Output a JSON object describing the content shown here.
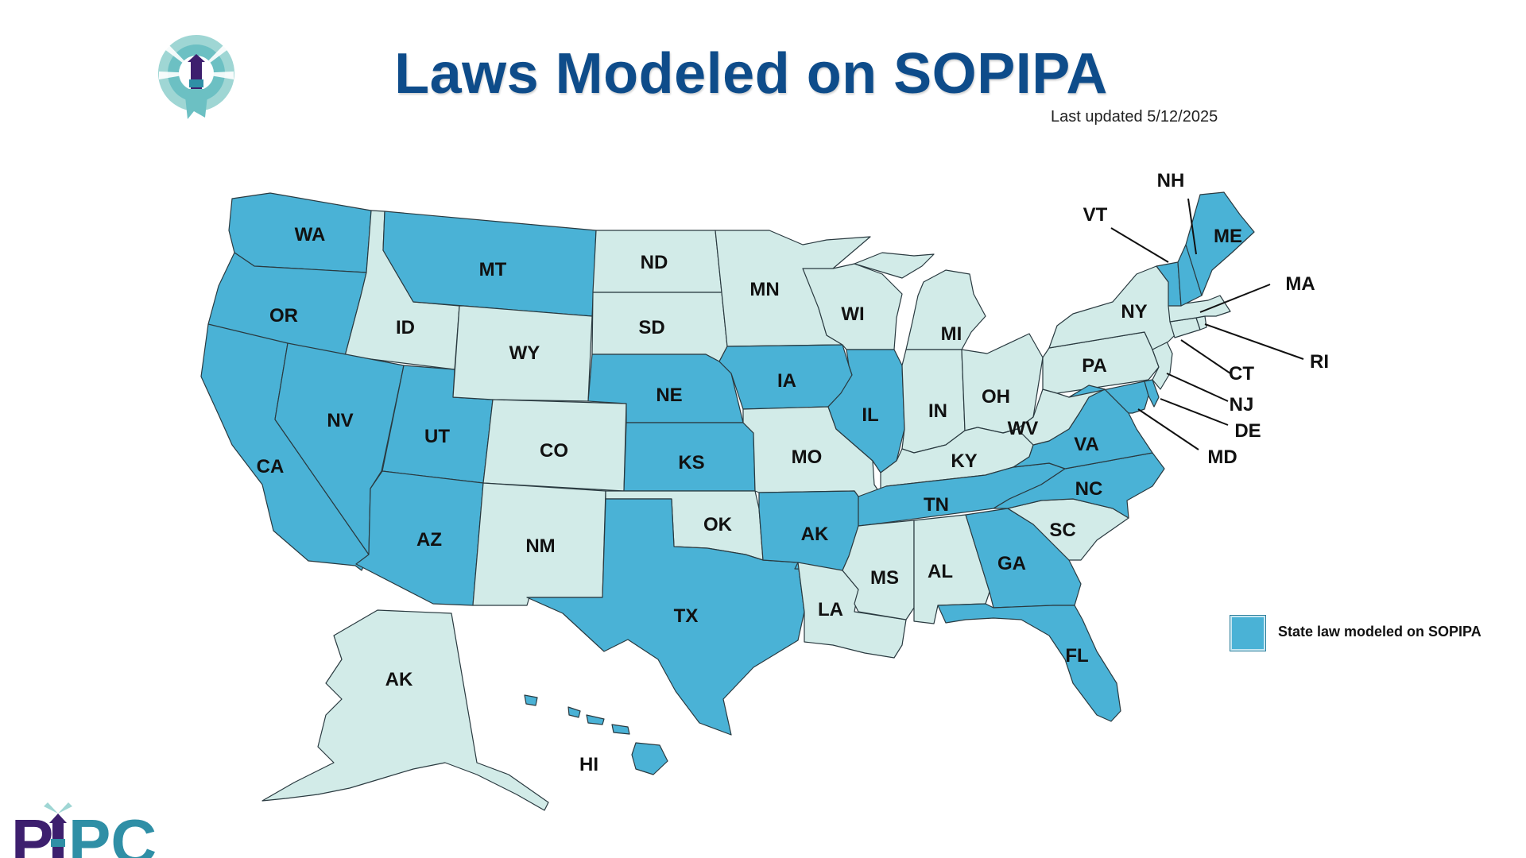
{
  "title": "Laws Modeled on SOPIPA",
  "last_updated": "Last updated 5/12/2025",
  "legend": {
    "label": "State law modeled on SOPIPA",
    "color": "#4AB2D6"
  },
  "colors": {
    "law": "#4AB2D6",
    "no_law": "#D2EBE8",
    "title": "#0E4C8A",
    "logo_purple": "#3D1F6E",
    "logo_teal": "#2F8FA6"
  },
  "logo": {
    "text_left": "P",
    "text_right": "PC"
  },
  "states_with_law": [
    "WA",
    "OR",
    "CA",
    "NV",
    "UT",
    "AZ",
    "MT",
    "NE",
    "KS",
    "TX",
    "IA",
    "IL",
    "AK",
    "TN",
    "NC",
    "GA",
    "FL",
    "VA",
    "MD",
    "DE",
    "VT",
    "NH",
    "ME",
    "HI"
  ],
  "states": [
    {
      "label": "WA",
      "law": true
    },
    {
      "label": "OR",
      "law": true
    },
    {
      "label": "CA",
      "law": true
    },
    {
      "label": "ID",
      "law": false
    },
    {
      "label": "NV",
      "law": true
    },
    {
      "label": "UT",
      "law": true
    },
    {
      "label": "AZ",
      "law": true
    },
    {
      "label": "MT",
      "law": true
    },
    {
      "label": "WY",
      "law": false
    },
    {
      "label": "CO",
      "law": false
    },
    {
      "label": "NM",
      "law": false
    },
    {
      "label": "ND",
      "law": false
    },
    {
      "label": "SD",
      "law": false
    },
    {
      "label": "NE",
      "law": true
    },
    {
      "label": "KS",
      "law": true
    },
    {
      "label": "OK",
      "law": false
    },
    {
      "label": "TX",
      "law": true
    },
    {
      "label": "MN",
      "law": false
    },
    {
      "label": "IA",
      "law": true
    },
    {
      "label": "MO",
      "law": false
    },
    {
      "label": "AK",
      "law": true
    },
    {
      "label": "LA",
      "law": false
    },
    {
      "label": "WI",
      "law": false
    },
    {
      "label": "IL",
      "law": true
    },
    {
      "label": "MI",
      "law": false
    },
    {
      "label": "IN",
      "law": false
    },
    {
      "label": "OH",
      "law": false
    },
    {
      "label": "KY",
      "law": false
    },
    {
      "label": "TN",
      "law": true
    },
    {
      "label": "MS",
      "law": false
    },
    {
      "label": "AL",
      "law": false
    },
    {
      "label": "GA",
      "law": true
    },
    {
      "label": "FL",
      "law": true
    },
    {
      "label": "SC",
      "law": false
    },
    {
      "label": "NC",
      "law": true
    },
    {
      "label": "VA",
      "law": true
    },
    {
      "label": "WV",
      "law": false
    },
    {
      "label": "PA",
      "law": false
    },
    {
      "label": "NY",
      "law": false
    },
    {
      "label": "VT",
      "law": true
    },
    {
      "label": "NH",
      "law": true
    },
    {
      "label": "ME",
      "law": true
    },
    {
      "label": "MA",
      "law": false
    },
    {
      "label": "RI",
      "law": false
    },
    {
      "label": "CT",
      "law": false
    },
    {
      "label": "NJ",
      "law": false
    },
    {
      "label": "DE",
      "law": true
    },
    {
      "label": "MD",
      "law": true
    },
    {
      "label": "AK",
      "law": false,
      "note": "Alaska"
    },
    {
      "label": "HI",
      "law": true
    }
  ]
}
